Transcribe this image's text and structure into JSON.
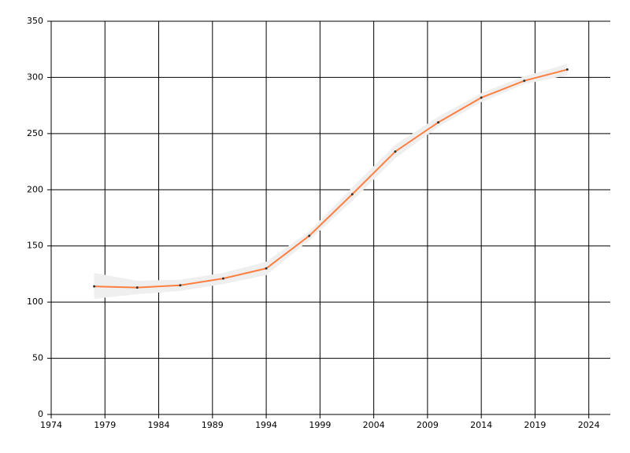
{
  "chart_data": {
    "type": "line",
    "x": [
      1978,
      1982,
      1986,
      1990,
      1994,
      1998,
      2002,
      2006,
      2010,
      2014,
      2018,
      2022
    ],
    "values": [
      114,
      113,
      115,
      121,
      130,
      159,
      196,
      234,
      260,
      282,
      297,
      307
    ],
    "band": {
      "lower": [
        103,
        107,
        110,
        116,
        124,
        155,
        190,
        228,
        256,
        278,
        294,
        302
      ],
      "upper": [
        126,
        119,
        120,
        126,
        136,
        163,
        202,
        240,
        265,
        286,
        301,
        312
      ],
      "color": "#efefef"
    },
    "color": "#ff7f41",
    "marker_color": "#333333",
    "xlim": [
      1974,
      2026
    ],
    "xticks": [
      1974,
      1979,
      1984,
      1989,
      1994,
      1999,
      2004,
      2009,
      2014,
      2019,
      2024
    ],
    "ylim": [
      0,
      350
    ],
    "yticks": [
      0,
      50,
      100,
      150,
      200,
      250,
      300,
      350
    ],
    "grid": true
  }
}
